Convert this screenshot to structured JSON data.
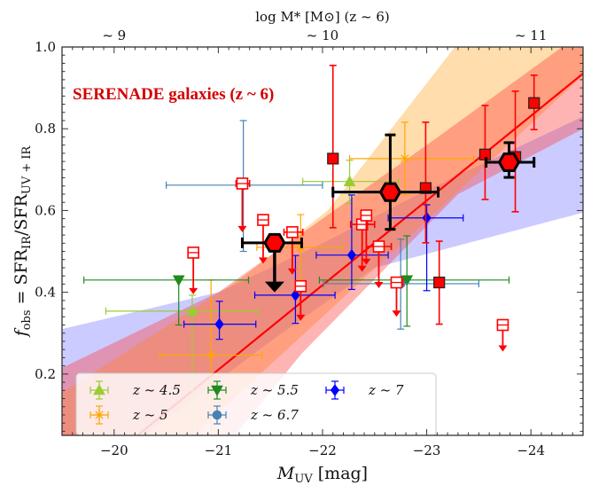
{
  "chart_data": {
    "type": "scatter",
    "title": "SERENADE galaxies (z ~ 6)",
    "xlabel": {
      "main": "M",
      "sub": "UV",
      "unit": " [mag]"
    },
    "ylabel": {
      "f": "f",
      "f_sub": "obs",
      "eq": " = SFR",
      "num_sub": "IR",
      "slash": "/SFR",
      "den_sub": "UV + IR"
    },
    "top_axis": {
      "label": "log M* [M⊙] (z ~ 6)",
      "ticks": [
        {
          "at": -20.0,
          "label": "~ 9"
        },
        {
          "at": -22.0,
          "label": "~ 10"
        },
        {
          "at": -24.0,
          "label": "~ 11"
        }
      ]
    },
    "xlim": [
      -19.5,
      -24.5
    ],
    "ylim": [
      0.05,
      1.0
    ],
    "x_ticks": [
      {
        "v": -20,
        "label": "−20"
      },
      {
        "v": -21,
        "label": "−21"
      },
      {
        "v": -22,
        "label": "−22"
      },
      {
        "v": -23,
        "label": "−23"
      },
      {
        "v": -24,
        "label": "−24"
      }
    ],
    "y_ticks": [
      {
        "v": 0.2,
        "label": "0.2"
      },
      {
        "v": 0.4,
        "label": "0.4"
      },
      {
        "v": 0.6,
        "label": "0.6"
      },
      {
        "v": 0.8,
        "label": "0.8"
      },
      {
        "v": 1.0,
        "label": "1.0"
      }
    ],
    "grid": false,
    "legend_position": "bottom-left",
    "bands": [
      {
        "name": "z~7 band",
        "color": "#6a6aff",
        "opacity": 0.35,
        "upper": [
          [
            -19.5,
            0.31
          ],
          [
            -21.0,
            0.4
          ],
          [
            -22.0,
            0.52
          ],
          [
            -23.0,
            0.65
          ],
          [
            -24.5,
            0.83
          ]
        ],
        "lower": [
          [
            -19.5,
            0.0
          ],
          [
            -20.3,
            0.05
          ],
          [
            -21.5,
            0.28
          ],
          [
            -22.5,
            0.46
          ],
          [
            -24.5,
            0.595
          ]
        ]
      },
      {
        "name": "z~5 band",
        "color": "#ffb347",
        "opacity": 0.45,
        "upper": [
          [
            -19.5,
            0.155
          ],
          [
            -21.2,
            0.43
          ],
          [
            -22.05,
            0.6
          ],
          [
            -23.27,
            1.0
          ],
          [
            -24.5,
            1.0
          ]
        ],
        "lower": [
          [
            -19.5,
            0.0
          ],
          [
            -20.75,
            0.047
          ],
          [
            -22.0,
            0.34
          ],
          [
            -24.5,
            0.93
          ]
        ]
      },
      {
        "name": "SERENADE band",
        "color": "#ff3b3b",
        "opacity": 0.38,
        "upper": [
          [
            -19.5,
            0.215
          ],
          [
            -21.0,
            0.4
          ],
          [
            -22.0,
            0.58
          ],
          [
            -23.0,
            0.76
          ],
          [
            -24.3,
            1.0
          ],
          [
            -24.5,
            1.0
          ]
        ],
        "lower": [
          [
            -19.5,
            0.0
          ],
          [
            -21.15,
            0.047
          ],
          [
            -21.8,
            0.25
          ],
          [
            -23.3,
            0.64
          ],
          [
            -24.5,
            0.8
          ]
        ]
      }
    ],
    "fit_line": {
      "color": "#ff0000",
      "points": [
        [
          -20.21,
          0.047
        ],
        [
          -24.5,
          0.935
        ]
      ]
    },
    "series": [
      {
        "name": "z ~ 4.5",
        "marker": "triangle-up",
        "color": "#9acd32",
        "legend": true,
        "points": [
          {
            "x": -20.75,
            "y": 0.354,
            "xr": [
              -19.92,
              -21.38
            ],
            "yr": [
              0.04,
              0.393
            ]
          },
          {
            "x": -22.26,
            "y": 0.671,
            "xr": [
              -21.81,
              -22.73
            ],
            "yr": [
              0.617,
              0.723
            ]
          }
        ]
      },
      {
        "name": "z ~ 5",
        "marker": "star",
        "color": "#ffa500",
        "legend": true,
        "points": [
          {
            "x": -20.93,
            "y": 0.246,
            "xr": [
              -20.44,
              -21.42
            ],
            "yr": [
              0.04,
              0.43
            ]
          },
          {
            "x": -21.79,
            "y": 0.51,
            "xr": [
              -21.37,
              -22.2
            ],
            "yr": [
              0.43,
              0.59
            ]
          },
          {
            "x": -22.79,
            "y": 0.727,
            "xr": [
              -22.26,
              -23.45
            ],
            "yr": [
              0.638,
              0.816
            ]
          }
        ]
      },
      {
        "name": "z ~ 5.5",
        "marker": "triangle-down",
        "color": "#1f8a1f",
        "legend": true,
        "points": [
          {
            "x": -20.62,
            "y": 0.43,
            "xr": [
              -19.71,
              -21.29
            ],
            "yr": [
              0.32,
              0.43
            ]
          },
          {
            "x": -22.81,
            "y": 0.43,
            "xr": [
              -21.97,
              -23.79
            ],
            "yr": [
              0.317,
              0.538
            ]
          }
        ]
      },
      {
        "name": "z ~ 6.7",
        "marker": "circle",
        "color": "#4682b4",
        "legend": true,
        "points": [
          {
            "x": -21.24,
            "y": 0.662,
            "xr": [
              -20.5,
              -22.0
            ],
            "yr": [
              0.5,
              0.82
            ]
          },
          {
            "x": -22.75,
            "y": 0.421,
            "xr": [
              -22.01,
              -23.5
            ],
            "yr": [
              0.31,
              0.53
            ]
          }
        ]
      },
      {
        "name": "z ~ 7",
        "marker": "diamond",
        "color": "#0000ff",
        "legend": true,
        "points": [
          {
            "x": -21.01,
            "y": 0.322,
            "xr": [
              -20.67,
              -21.36
            ],
            "yr": [
              0.285,
              0.378
            ]
          },
          {
            "x": -21.74,
            "y": 0.393,
            "xr": [
              -21.35,
              -22.12
            ],
            "yr": [
              0.324,
              0.49
            ]
          },
          {
            "x": -22.28,
            "y": 0.491,
            "xr": [
              -21.94,
              -22.63
            ],
            "yr": [
              0.407,
              0.638
            ]
          },
          {
            "x": -23.0,
            "y": 0.582,
            "xr": [
              -22.63,
              -23.35
            ],
            "yr": [
              0.404,
              0.614
            ]
          }
        ]
      },
      {
        "name": "SERENADE detections",
        "marker": "square",
        "color": "#ff0000",
        "legend": false,
        "points": [
          {
            "x": -22.1,
            "y": 0.727,
            "yr": [
              0.558,
              0.955
            ]
          },
          {
            "x": -22.99,
            "y": 0.655,
            "yr": [
              0.521,
              0.816
            ]
          },
          {
            "x": -23.12,
            "y": 0.424,
            "yr": [
              0.322,
              0.525
            ]
          },
          {
            "x": -23.56,
            "y": 0.737,
            "yr": [
              0.627,
              0.857
            ]
          },
          {
            "x": -23.85,
            "y": 0.731,
            "yr": [
              0.597,
              0.892
            ]
          },
          {
            "x": -24.03,
            "y": 0.863,
            "yr": [
              0.798,
              0.931
            ]
          }
        ]
      },
      {
        "name": "SERENADE upper limits",
        "marker": "open-square",
        "color": "#ff0000",
        "legend": false,
        "points": [
          {
            "x": -20.76,
            "y": 0.497,
            "limit_to": 0.395
          },
          {
            "x": -21.23,
            "y": 0.666,
            "limit_to": 0.547,
            "xr": [
              -21.17,
              -21.3
            ]
          },
          {
            "x": -21.43,
            "y": 0.577,
            "limit_to": 0.47
          },
          {
            "x": -21.71,
            "y": 0.547,
            "limit_to": 0.443,
            "xr": [
              -21.63,
              -21.81
            ]
          },
          {
            "x": -21.79,
            "y": 0.415,
            "limit_to": 0.33
          },
          {
            "x": -22.38,
            "y": 0.566,
            "limit_to": 0.45,
            "xr": [
              -22.27,
              -22.5
            ]
          },
          {
            "x": -22.42,
            "y": 0.588,
            "limit_to": 0.467
          },
          {
            "x": -22.54,
            "y": 0.512,
            "limit_to": 0.41,
            "xr": [
              -22.42,
              -22.66
            ]
          },
          {
            "x": -22.71,
            "y": 0.424,
            "limit_to": 0.34,
            "xr": [
              -22.66,
              -22.77
            ]
          },
          {
            "x": -23.73,
            "y": 0.32,
            "limit_to": 0.255
          }
        ]
      },
      {
        "name": "SERENADE stacks",
        "marker": "hexagon",
        "color": "#ff0000",
        "legend": false,
        "points": [
          {
            "x": -21.54,
            "y": 0.521,
            "xr": [
              -21.23,
              -21.8
            ],
            "limit_to": 0.4
          },
          {
            "x": -22.65,
            "y": 0.645,
            "xr": [
              -22.1,
              -23.11
            ],
            "yr": [
              0.554,
              0.785
            ]
          },
          {
            "x": -23.79,
            "y": 0.718,
            "xr": [
              -23.57,
              -24.03
            ],
            "yr": [
              0.681,
              0.766
            ]
          }
        ]
      }
    ]
  }
}
